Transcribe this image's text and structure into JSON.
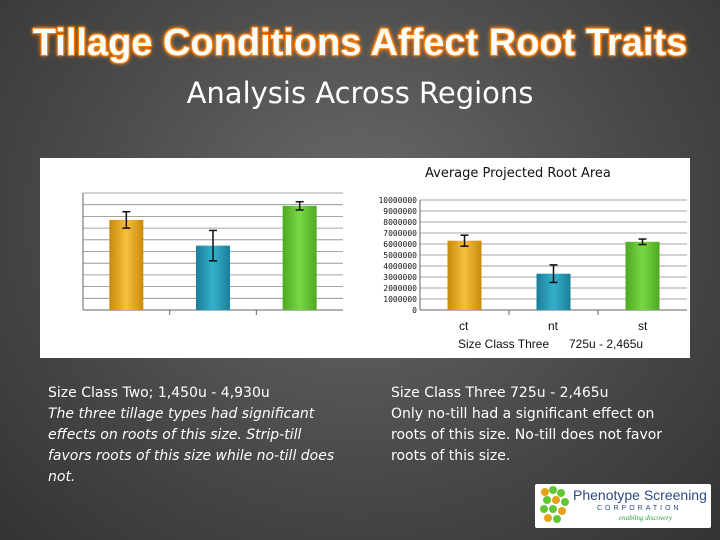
{
  "slide": {
    "title": "Tillage Conditions Affect Root Traits",
    "subtitle": "Analysis Across Regions"
  },
  "chart_data": [
    {
      "type": "bar",
      "title": "",
      "categories": [
        "",
        "",
        ""
      ],
      "values": [
        7700000,
        5500000,
        8900000
      ],
      "errors": [
        700000,
        1300000,
        350000
      ],
      "ylim": [
        0,
        10000000
      ],
      "colors": [
        "#e3a21a",
        "#2a9cb8",
        "#62c62e"
      ],
      "grid": true
    },
    {
      "type": "bar",
      "title": "Average Projected Root Area",
      "categories": [
        "ct",
        "nt",
        "st"
      ],
      "xlabel_left": "Size Class Three",
      "xlabel_right": "725u - 2,465u",
      "values": [
        6300000,
        3300000,
        6200000
      ],
      "errors": [
        500000,
        800000,
        250000
      ],
      "ylim": [
        0,
        10000000
      ],
      "ticks": [
        "0",
        "1000000",
        "2000000",
        "3000000",
        "4000000",
        "5000000",
        "6000000",
        "7000000",
        "8000000",
        "9000000",
        "10000000"
      ],
      "colors": [
        "#e3a21a",
        "#2a9cb8",
        "#62c62e"
      ],
      "grid": true
    }
  ],
  "left_text": {
    "heading": "Size Class Two; 1,450u - 4,930u",
    "body": "The three tillage types had significant effects on roots of this size.  Strip-till favors roots of this size while no-till does not."
  },
  "right_text": {
    "heading": "Size Class Three   725u - 2,465u",
    "body": "Only no-till had a significant effect on roots of this size.  No-till does not favor roots of this size."
  },
  "logo": {
    "name": "Phenotype Screening",
    "corp": "CORPORATION",
    "tagline": "enabling discovery"
  }
}
